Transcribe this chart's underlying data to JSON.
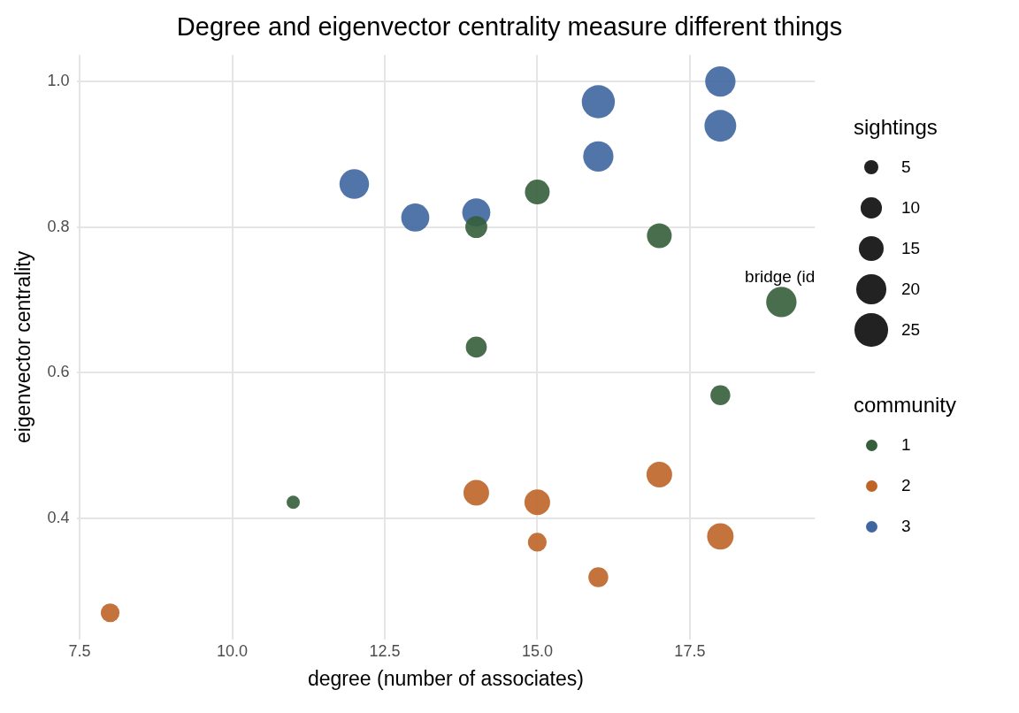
{
  "chart_data": {
    "type": "bubble",
    "title": "Degree and eigenvector centrality measure different things",
    "xlabel": "degree (number of associates)",
    "ylabel": "eigenvector centrality",
    "legend_title": "community",
    "legend": "right",
    "grid": true,
    "xlim": [
      7.45,
      19.55
    ],
    "xticks": [
      {
        "value": 7.5,
        "label": "7.5"
      },
      {
        "value": 10,
        "label": "10.0"
      },
      {
        "value": 12.5,
        "label": "12.5"
      },
      {
        "value": 15,
        "label": "15.0"
      },
      {
        "value": 17.5,
        "label": "17.5"
      }
    ],
    "ylim": [
      0.2335,
      1.0365
    ],
    "yticks": [
      {
        "value": 0.4,
        "label": "0.4"
      },
      {
        "value": 0.6,
        "label": "0.6"
      },
      {
        "value": 0.8,
        "label": "0.8"
      },
      {
        "value": 1.0,
        "label": "1.0"
      }
    ],
    "size_legend": [
      5,
      10,
      15,
      20,
      25
    ],
    "series": [
      {
        "name": "1",
        "color": "#355e3b",
        "x": [
          15,
          14,
          17,
          19,
          14,
          18,
          11
        ],
        "values": [
          0.848,
          0.8,
          0.788,
          0.697,
          0.635,
          0.569,
          0.422
        ],
        "sizes": [
          14,
          11,
          14,
          21,
          10,
          9,
          4
        ]
      },
      {
        "name": "2",
        "color": "#bf6427",
        "x": [
          17,
          14,
          15,
          18,
          15,
          16,
          8
        ],
        "values": [
          0.46,
          0.435,
          0.422,
          0.375,
          0.367,
          0.319,
          0.27
        ],
        "sizes": [
          15,
          15,
          15,
          16,
          8,
          9,
          8
        ]
      },
      {
        "name": "3",
        "color": "#3f66a0",
        "x": [
          18,
          16,
          18,
          16,
          12,
          13,
          14
        ],
        "values": [
          1.0,
          0.972,
          0.939,
          0.897,
          0.859,
          0.813,
          0.82
        ],
        "sizes": [
          21,
          25,
          23,
          21,
          20,
          18,
          18
        ]
      }
    ],
    "annotations": [
      "sightings",
      {
        "text": "bridge (id",
        "x": 19,
        "y": 0.697
      }
    ]
  }
}
